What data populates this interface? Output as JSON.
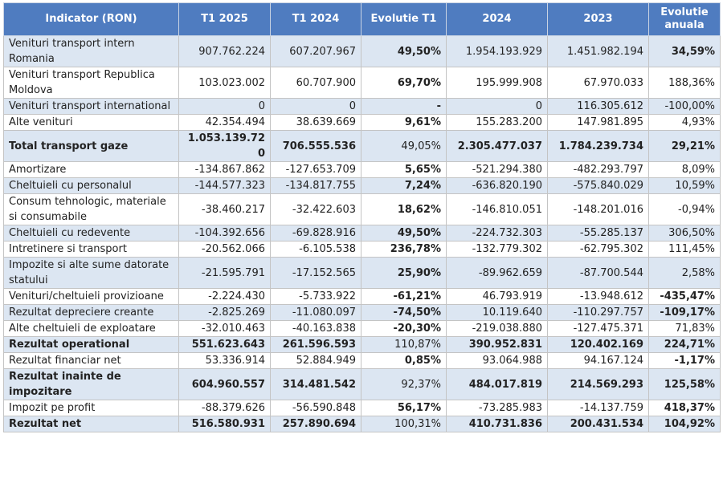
{
  "table": {
    "header": [
      "Indicator (RON)",
      "T1 2025",
      "T1 2024",
      "Evolutie T1",
      "2024",
      "2023",
      "Evolutie anuala"
    ],
    "rows": [
      {
        "cells": [
          "Venituri transport intern Romania",
          "907.762.224",
          "607.207.967",
          "49,50%",
          "1.954.193.929",
          "1.451.982.194",
          "34,59%"
        ],
        "bold": [
          false,
          false,
          false,
          true,
          false,
          false,
          true
        ]
      },
      {
        "cells": [
          "Venituri transport Republica Moldova",
          "103.023.002",
          "60.707.900",
          "69,70%",
          "195.999.908",
          "67.970.033",
          "188,36%"
        ],
        "bold": [
          false,
          false,
          false,
          true,
          false,
          false,
          false
        ]
      },
      {
        "cells": [
          "Venituri transport international",
          "0",
          "0",
          "-",
          "0",
          "116.305.612",
          "-100,00%"
        ],
        "bold": [
          false,
          false,
          false,
          true,
          false,
          false,
          false
        ]
      },
      {
        "cells": [
          "Alte venituri",
          "42.354.494",
          "38.639.669",
          "9,61%",
          "155.283.200",
          "147.981.895",
          "4,93%"
        ],
        "bold": [
          false,
          false,
          false,
          true,
          false,
          false,
          false
        ]
      },
      {
        "cells": [
          "Total transport gaze",
          "1.053.139.720",
          "706.555.536",
          "49,05%",
          "2.305.477.037",
          "1.784.239.734",
          "29,21%"
        ],
        "bold": [
          true,
          true,
          true,
          false,
          true,
          true,
          true
        ]
      },
      {
        "cells": [
          "Amortizare",
          "-134.867.862",
          "-127.653.709",
          "5,65%",
          "-521.294.380",
          "-482.293.797",
          "8,09%"
        ],
        "bold": [
          false,
          false,
          false,
          true,
          false,
          false,
          false
        ]
      },
      {
        "cells": [
          "Cheltuieli cu personalul",
          "-144.577.323",
          "-134.817.755",
          "7,24%",
          "-636.820.190",
          "-575.840.029",
          "10,59%"
        ],
        "bold": [
          false,
          false,
          false,
          true,
          false,
          false,
          false
        ]
      },
      {
        "cells": [
          "Consum tehnologic, materiale si consumabile",
          "-38.460.217",
          "-32.422.603",
          "18,62%",
          "-146.810.051",
          "-148.201.016",
          "-0,94%"
        ],
        "bold": [
          false,
          false,
          false,
          true,
          false,
          false,
          false
        ]
      },
      {
        "cells": [
          "Cheltuieli cu redevente",
          "-104.392.656",
          "-69.828.916",
          "49,50%",
          "-224.732.303",
          "-55.285.137",
          "306,50%"
        ],
        "bold": [
          false,
          false,
          false,
          true,
          false,
          false,
          false
        ]
      },
      {
        "cells": [
          "Intretinere si transport",
          "-20.562.066",
          "-6.105.538",
          "236,78%",
          "-132.779.302",
          "-62.795.302",
          "111,45%"
        ],
        "bold": [
          false,
          false,
          false,
          true,
          false,
          false,
          false
        ]
      },
      {
        "cells": [
          "Impozite si alte sume datorate statului",
          "-21.595.791",
          "-17.152.565",
          "25,90%",
          "-89.962.659",
          "-87.700.544",
          "2,58%"
        ],
        "bold": [
          false,
          false,
          false,
          true,
          false,
          false,
          false
        ]
      },
      {
        "cells": [
          "Venituri/cheltuieli provizioane",
          "-2.224.430",
          "-5.733.922",
          "-61,21%",
          "46.793.919",
          "-13.948.612",
          "-435,47%"
        ],
        "bold": [
          false,
          false,
          false,
          true,
          false,
          false,
          true
        ]
      },
      {
        "cells": [
          "Rezultat depreciere creante",
          "-2.825.269",
          "-11.080.097",
          "-74,50%",
          "10.119.640",
          "-110.297.757",
          "-109,17%"
        ],
        "bold": [
          false,
          false,
          false,
          true,
          false,
          false,
          true
        ]
      },
      {
        "cells": [
          "Alte cheltuieli de exploatare",
          "-32.010.463",
          "-40.163.838",
          "-20,30%",
          "-219.038.880",
          "-127.475.371",
          "71,83%"
        ],
        "bold": [
          false,
          false,
          false,
          true,
          false,
          false,
          false
        ]
      },
      {
        "cells": [
          "Rezultat operational",
          "551.623.643",
          "261.596.593",
          "110,87%",
          "390.952.831",
          "120.402.169",
          "224,71%"
        ],
        "bold": [
          true,
          true,
          true,
          false,
          true,
          true,
          true
        ]
      },
      {
        "cells": [
          "Rezultat financiar net",
          "53.336.914",
          "52.884.949",
          "0,85%",
          "93.064.988",
          "94.167.124",
          "-1,17%"
        ],
        "bold": [
          false,
          false,
          false,
          true,
          false,
          false,
          true
        ]
      },
      {
        "cells": [
          "Rezultat inainte de impozitare",
          "604.960.557",
          "314.481.542",
          "92,37%",
          "484.017.819",
          "214.569.293",
          "125,58%"
        ],
        "bold": [
          true,
          true,
          true,
          false,
          true,
          true,
          true
        ]
      },
      {
        "cells": [
          "Impozit pe profit",
          "-88.379.626",
          "-56.590.848",
          "56,17%",
          "-73.285.983",
          "-14.137.759",
          "418,37%"
        ],
        "bold": [
          false,
          false,
          false,
          true,
          false,
          false,
          true
        ]
      },
      {
        "cells": [
          "Rezultat net",
          "516.580.931",
          "257.890.694",
          "100,31%",
          "410.731.836",
          "200.431.534",
          "104,92%"
        ],
        "bold": [
          true,
          true,
          true,
          false,
          true,
          true,
          true
        ]
      }
    ]
  }
}
